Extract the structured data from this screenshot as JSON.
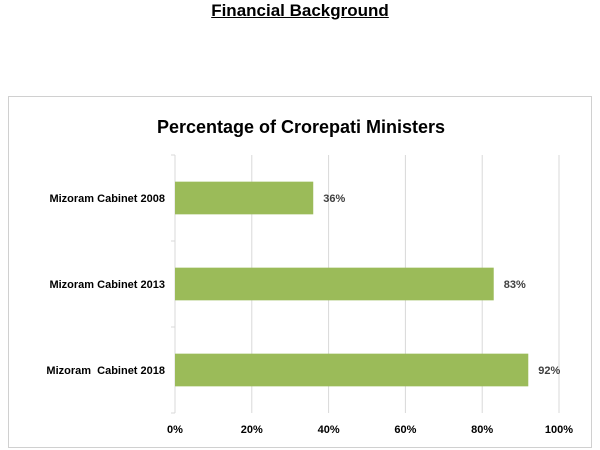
{
  "page": {
    "heading": "Financial Background"
  },
  "chart_data": {
    "type": "bar",
    "orientation": "horizontal",
    "title": "Percentage of Crorepati Ministers",
    "categories": [
      "Mizoram Cabinet 2008",
      "Mizoram Cabinet 2013",
      "Mizoram  Cabinet 2018"
    ],
    "values": [
      36,
      83,
      92
    ],
    "data_labels": [
      "36%",
      "83%",
      "92%"
    ],
    "x_ticks": [
      0,
      20,
      40,
      60,
      80,
      100
    ],
    "x_tick_labels": [
      "0%",
      "20%",
      "40%",
      "60%",
      "80%",
      "100%"
    ],
    "xlim": [
      0,
      100
    ],
    "xlabel": "",
    "ylabel": "",
    "grid": true,
    "legend": "none",
    "bar_color": "#9bbb59",
    "grid_color": "#d9d9d9",
    "text_color": "#000000",
    "label_color": "#404040"
  }
}
